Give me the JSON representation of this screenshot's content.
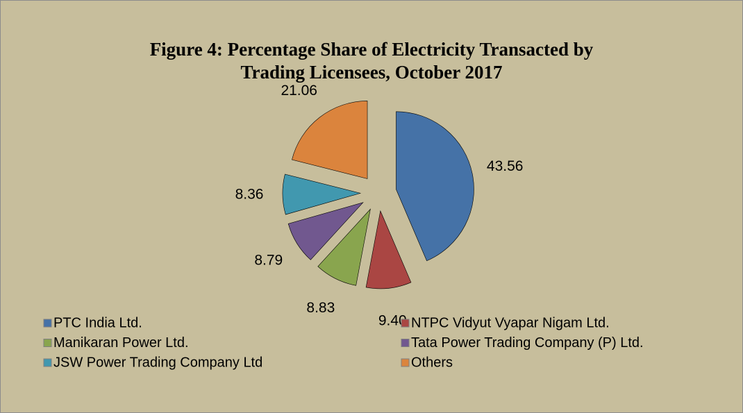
{
  "chart_data": {
    "type": "pie",
    "title": [
      "Figure 4: Percentage Share of Electricity Transacted by",
      "Trading Licensees, October 2017"
    ],
    "categories": [
      "PTC India Ltd.",
      "NTPC Vidyut Vyapar Nigam Ltd.",
      "Manikaran Power Ltd.",
      "Tata Power Trading Company (P) Ltd.",
      "JSW Power Trading Company Ltd",
      "Others"
    ],
    "values": [
      43.56,
      9.4,
      8.83,
      8.79,
      8.36,
      21.06
    ],
    "value_labels": [
      "43.56",
      "9.40",
      "8.83",
      "8.79",
      "8.36",
      "21.06"
    ],
    "colors": [
      "#4572a7",
      "#aa4643",
      "#89a54e",
      "#71588f",
      "#4198af",
      "#db843d"
    ],
    "legend": "bottom"
  }
}
